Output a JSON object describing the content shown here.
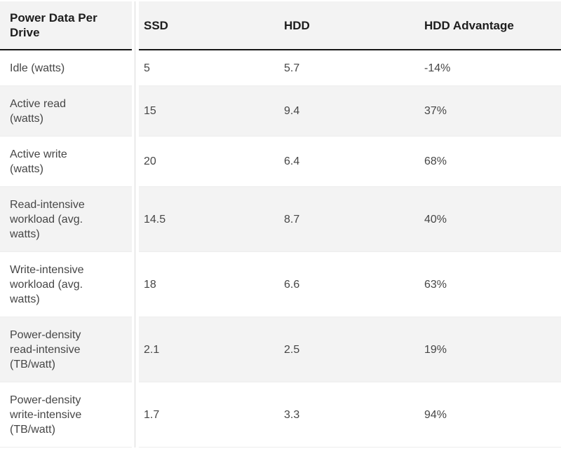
{
  "colors": {
    "header_bg": "#f3f3f3",
    "row_alt_bg": "#f3f3f3",
    "row_bg": "#ffffff",
    "header_text": "#1d1d1d",
    "body_text": "#464646",
    "header_border": "#161616",
    "column_divider": "#d9d9d9",
    "row_hairline": "#ededed"
  },
  "table": {
    "header": {
      "row_label": "Power Data Per\nDrive",
      "col_ssd": "SSD",
      "col_hdd": "HDD",
      "col_advantage": "HDD Advantage"
    },
    "rows": [
      {
        "label": "Idle (watts)",
        "ssd": "5",
        "hdd": "5.7",
        "advantage": "-14%"
      },
      {
        "label": "Active read\n(watts)",
        "ssd": "15",
        "hdd": "9.4",
        "advantage": "37%"
      },
      {
        "label": "Active write\n(watts)",
        "ssd": "20",
        "hdd": "6.4",
        "advantage": "68%"
      },
      {
        "label": "Read-intensive\nworkload (avg.\nwatts)",
        "ssd": "14.5",
        "hdd": "8.7",
        "advantage": "40%"
      },
      {
        "label": "Write-intensive\nworkload (avg.\nwatts)",
        "ssd": "18",
        "hdd": "6.6",
        "advantage": "63%"
      },
      {
        "label": "Power-density\nread-intensive\n(TB/watt)",
        "ssd": "2.1",
        "hdd": "2.5",
        "advantage": "19%"
      },
      {
        "label": "Power-density\nwrite-intensive\n(TB/watt)",
        "ssd": "1.7",
        "hdd": "3.3",
        "advantage": "94%"
      }
    ]
  },
  "chart_data": {
    "type": "table",
    "title": "Power Data Per Drive",
    "columns": [
      "Power Data Per Drive",
      "SSD",
      "HDD",
      "HDD Advantage"
    ],
    "rows": [
      [
        "Idle (watts)",
        5,
        5.7,
        "-14%"
      ],
      [
        "Active read (watts)",
        15,
        9.4,
        "37%"
      ],
      [
        "Active write (watts)",
        20,
        6.4,
        "68%"
      ],
      [
        "Read-intensive workload (avg. watts)",
        14.5,
        8.7,
        "40%"
      ],
      [
        "Write-intensive workload (avg. watts)",
        18,
        6.6,
        "63%"
      ],
      [
        "Power-density read-intensive (TB/watt)",
        2.1,
        2.5,
        "19%"
      ],
      [
        "Power-density write-intensive (TB/watt)",
        1.7,
        3.3,
        "94%"
      ]
    ],
    "layout": {
      "zebra_striping": true,
      "striped_rows": "even rows gray",
      "header_divider": "thick dark line under header",
      "first_column_divider": "light vertical rule between label column and data columns"
    }
  }
}
